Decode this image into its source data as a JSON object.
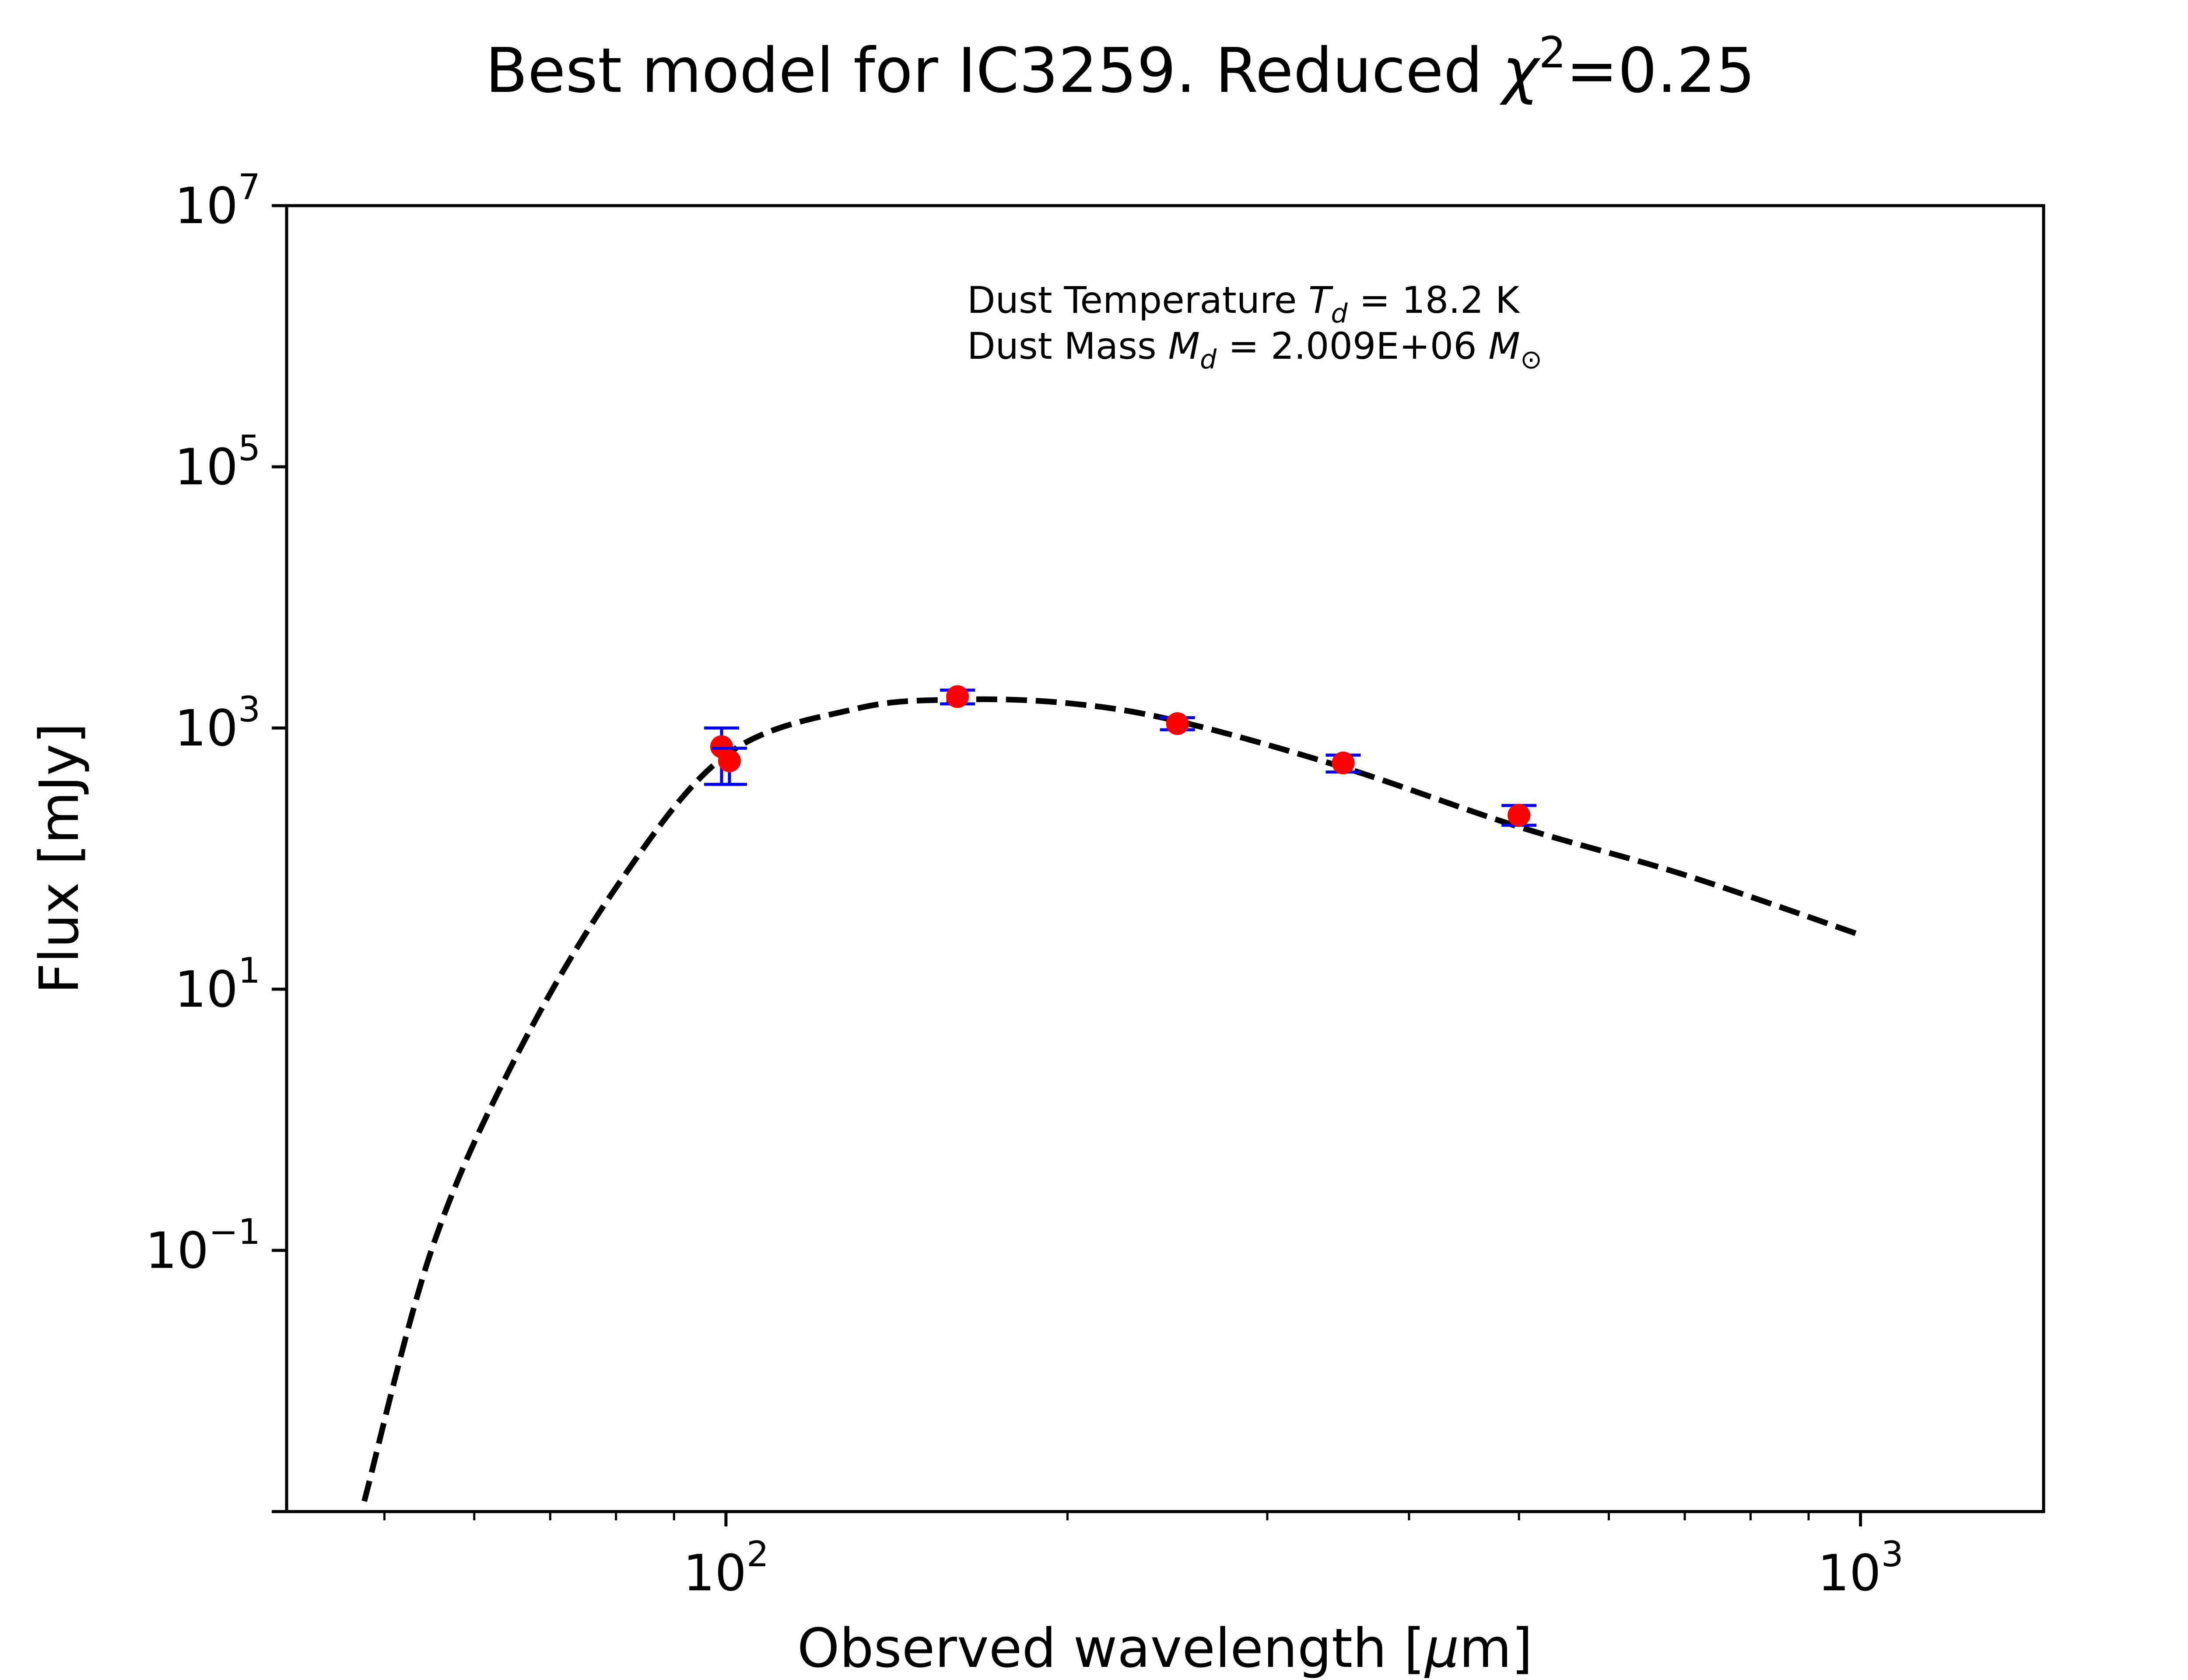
{
  "title": {
    "prefix": "Best model for IC3259. Reduced ",
    "chi": "χ",
    "chi_exp": "2",
    "value": "=0.25"
  },
  "annotation": {
    "temp_label": "Dust Temperature ",
    "temp_sym": "T",
    "temp_sub": "d",
    "temp_value": " = 18.2 K",
    "mass_label": "Dust Mass ",
    "mass_sym": "M",
    "mass_sub": "d",
    "mass_value": " = 2.009E+06 ",
    "mass_unit_sym": "M",
    "mass_unit_sub": "⊙"
  },
  "colors": {
    "model": "#000000",
    "points": "#ff0000",
    "errorbars": "#0000ff"
  },
  "chart_data": {
    "type": "scatter",
    "title": "Best model for IC3259. Reduced χ²=0.25",
    "xlabel": "Observed wavelength [μm]",
    "ylabel": "Flux [mJy]",
    "xscale": "log",
    "yscale": "log",
    "xlim": [
      41,
      1450
    ],
    "ylim": [
      0.001,
      10000000
    ],
    "x_ticks": [
      {
        "value": 100,
        "base": "10",
        "exp": "2"
      },
      {
        "value": 1000,
        "base": "10",
        "exp": "3"
      }
    ],
    "y_ticks": [
      {
        "value": 0.1,
        "base": "10",
        "exp": "−1"
      },
      {
        "value": 10,
        "base": "10",
        "exp": "1"
      },
      {
        "value": 1000,
        "base": "10",
        "exp": "3"
      },
      {
        "value": 100000,
        "base": "10",
        "exp": "5"
      },
      {
        "value": 10000000,
        "base": "10",
        "exp": "7"
      }
    ],
    "observed": [
      {
        "x": 100,
        "y": 720,
        "yerr_low": 370,
        "yerr_high": 1000
      },
      {
        "x": 100,
        "y": 560,
        "yerr_low": 370,
        "yerr_high": 700
      },
      {
        "x": 160,
        "y": 1740,
        "yerr_low": 1530,
        "yerr_high": 1950
      },
      {
        "x": 250,
        "y": 1080,
        "yerr_low": 970,
        "yerr_high": 1200
      },
      {
        "x": 350,
        "y": 540,
        "yerr_low": 460,
        "yerr_high": 620
      },
      {
        "x": 500,
        "y": 215,
        "yerr_low": 180,
        "yerr_high": 255
      }
    ],
    "series": [
      {
        "style": "dashed",
        "x": [
          48,
          55,
          65,
          80,
          100,
          130,
          160,
          200,
          250,
          350,
          500,
          700,
          1000
        ],
        "y": [
          0.0012,
          0.1,
          2.8,
          60,
          620,
          1400,
          1650,
          1550,
          1130,
          500,
          175,
          75,
          26
        ]
      }
    ],
    "grid": false
  }
}
